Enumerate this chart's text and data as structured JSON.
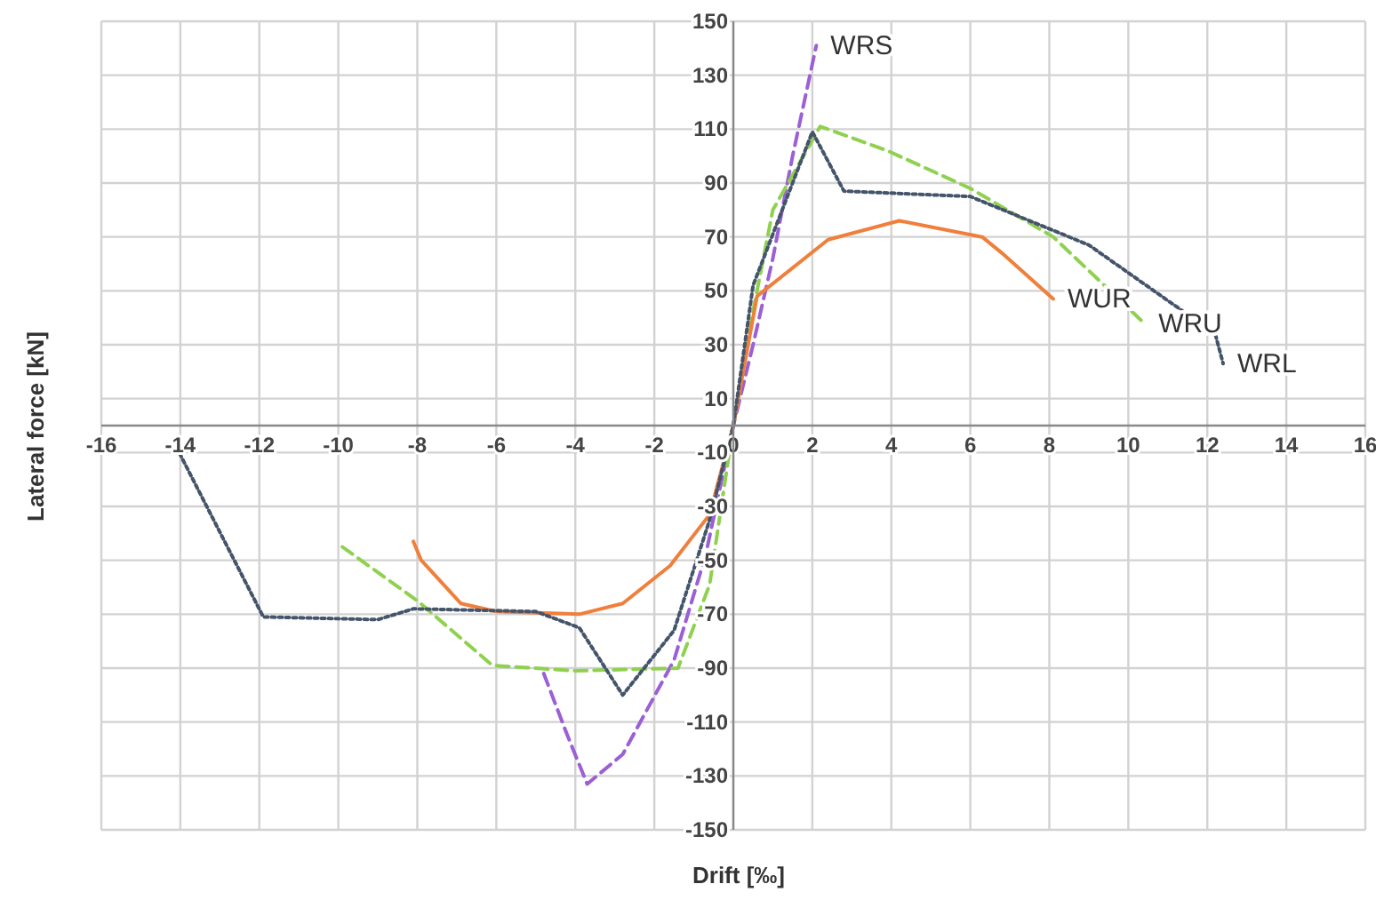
{
  "chart_data": {
    "type": "line",
    "xlabel": "Drift [‰]",
    "ylabel": "Lateral force [kN]",
    "xlim": [
      -16,
      16
    ],
    "xticks": [
      -16,
      -14,
      -12,
      -10,
      -8,
      -6,
      -4,
      -2,
      0,
      2,
      4,
      6,
      8,
      10,
      12,
      14,
      16
    ],
    "ylim": [
      -150,
      150
    ],
    "yticks": [
      -150,
      -130,
      -110,
      -90,
      -70,
      -50,
      -30,
      -10,
      10,
      30,
      50,
      70,
      90,
      110,
      130,
      150
    ],
    "grid": true,
    "marker": "none",
    "series": [
      {
        "name": "WRS",
        "color": "#9b5fd6",
        "line_style": "dashed",
        "x": [
          -4.8,
          -4.2,
          -3.7,
          -2.8,
          -1.5,
          -0.7,
          0,
          0.5,
          1,
          1.5,
          2.1
        ],
        "values": [
          -92,
          -115,
          -133,
          -122,
          -87,
          -48,
          0,
          30,
          62,
          100,
          141
        ]
      },
      {
        "name": "WRU",
        "color": "#8fd14f",
        "line_style": "dashed",
        "x": [
          -9.9,
          -8,
          -6.1,
          -4,
          -1.4,
          -0.6,
          0,
          0.4,
          1,
          2.2,
          3.9,
          6,
          8.1,
          10.4
        ],
        "values": [
          -45,
          -65,
          -89,
          -91,
          -90,
          -59,
          0,
          35,
          80,
          111,
          102,
          88,
          70,
          38
        ]
      },
      {
        "name": "WUR",
        "color": "#f07f3c",
        "line_style": "solid",
        "x": [
          -8.1,
          -7.9,
          -6.9,
          -6,
          -3.9,
          -2.8,
          -1.6,
          -0.6,
          0,
          0.6,
          2.4,
          4.2,
          6.3,
          6.8,
          8.1
        ],
        "values": [
          -43,
          -50,
          -66,
          -69,
          -70,
          -66,
          -52,
          -33,
          0,
          48,
          69,
          76,
          70,
          64,
          47
        ]
      },
      {
        "name": "WRL",
        "color": "#44546a",
        "line_style": "dotted",
        "x": [
          -14.1,
          -11.9,
          -9,
          -8.1,
          -5,
          -3.9,
          -2.8,
          -1.5,
          -0.6,
          0,
          0.5,
          2,
          2.8,
          6,
          9,
          12.2,
          12.4
        ],
        "values": [
          -8,
          -71,
          -72,
          -68,
          -69,
          -75,
          -100,
          -76,
          -35,
          0,
          52,
          109,
          87,
          85,
          67,
          34,
          23
        ]
      }
    ]
  }
}
